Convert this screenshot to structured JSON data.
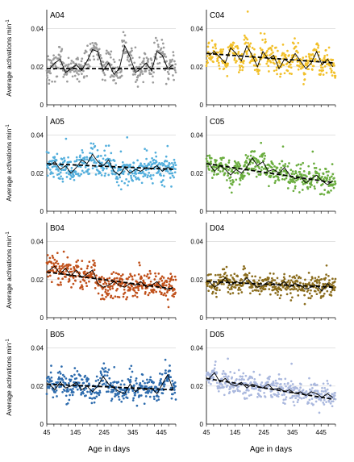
{
  "figure": {
    "ylabel": "Average activations min",
    "ylabel_sup": "-1",
    "xlabel": "Age in days"
  },
  "chart_data": [
    {
      "type": "scatter",
      "panel": "A04",
      "color": "#9b9b9b",
      "x_ticks": [
        45,
        145,
        245,
        345,
        445
      ],
      "y_ticks": [
        0,
        0.02,
        0.04
      ],
      "xlim": [
        45,
        495
      ],
      "ylim": [
        0,
        0.05
      ],
      "trend": [
        0.019,
        0.019
      ],
      "mean_level": 0.02,
      "spread": 0.006,
      "series": [
        {
          "values": [
            0.019,
            0.022,
            0.024,
            0.017,
            0.019,
            0.021,
            0.018,
            0.023,
            0.029,
            0.028,
            0.018,
            0.022,
            0.016,
            0.019,
            0.031,
            0.025,
            0.017,
            0.019,
            0.022,
            0.018,
            0.028,
            0.026,
            0.019,
            0.021
          ]
        }
      ]
    },
    {
      "type": "scatter",
      "panel": "C04",
      "color": "#f2c02a",
      "x_ticks": [
        45,
        145,
        245,
        345,
        445
      ],
      "y_ticks": [
        0,
        0.02,
        0.04
      ],
      "xlim": [
        45,
        495
      ],
      "ylim": [
        0,
        0.05
      ],
      "trend": [
        0.027,
        0.022
      ],
      "mean_level": 0.024,
      "spread": 0.006,
      "series": [
        {
          "values": [
            0.026,
            0.028,
            0.025,
            0.022,
            0.03,
            0.027,
            0.023,
            0.031,
            0.026,
            0.02,
            0.028,
            0.024,
            0.026,
            0.019,
            0.024,
            0.022,
            0.027,
            0.023,
            0.019,
            0.022,
            0.028,
            0.021,
            0.024,
            0.02
          ]
        }
      ]
    },
    {
      "type": "scatter",
      "panel": "A05",
      "color": "#52aedc",
      "x_ticks": [
        45,
        145,
        245,
        345,
        445
      ],
      "y_ticks": [
        0,
        0.02,
        0.04
      ],
      "xlim": [
        45,
        495
      ],
      "ylim": [
        0,
        0.05
      ],
      "trend": [
        0.025,
        0.022
      ],
      "mean_level": 0.024,
      "spread": 0.006,
      "series": [
        {
          "values": [
            0.024,
            0.026,
            0.022,
            0.024,
            0.02,
            0.023,
            0.027,
            0.025,
            0.03,
            0.026,
            0.024,
            0.027,
            0.021,
            0.019,
            0.023,
            0.02,
            0.022,
            0.021,
            0.023,
            0.022,
            0.024,
            0.021,
            0.023,
            0.022
          ]
        }
      ]
    },
    {
      "type": "scatter",
      "panel": "C05",
      "color": "#6aad3e",
      "x_ticks": [
        45,
        145,
        245,
        345,
        445
      ],
      "y_ticks": [
        0,
        0.02,
        0.04
      ],
      "xlim": [
        45,
        495
      ],
      "ylim": [
        0,
        0.05
      ],
      "trend": [
        0.025,
        0.015
      ],
      "mean_level": 0.02,
      "spread": 0.006,
      "series": [
        {
          "values": [
            0.025,
            0.021,
            0.024,
            0.022,
            0.019,
            0.022,
            0.02,
            0.023,
            0.028,
            0.024,
            0.026,
            0.021,
            0.022,
            0.02,
            0.023,
            0.019,
            0.017,
            0.018,
            0.015,
            0.017,
            0.019,
            0.016,
            0.014,
            0.016
          ]
        }
      ]
    },
    {
      "type": "scatter",
      "panel": "B04",
      "color": "#c0501a",
      "x_ticks": [
        45,
        145,
        245,
        345,
        445
      ],
      "y_ticks": [
        0,
        0.02,
        0.04
      ],
      "xlim": [
        45,
        495
      ],
      "ylim": [
        0,
        0.05
      ],
      "trend": [
        0.024,
        0.015
      ],
      "mean_level": 0.02,
      "spread": 0.006,
      "series": [
        {
          "values": [
            0.025,
            0.027,
            0.023,
            0.026,
            0.022,
            0.025,
            0.021,
            0.023,
            0.025,
            0.018,
            0.016,
            0.017,
            0.019,
            0.017,
            0.016,
            0.018,
            0.017,
            0.019,
            0.016,
            0.017,
            0.019,
            0.016,
            0.015,
            0.016
          ]
        }
      ]
    },
    {
      "type": "scatter",
      "panel": "D04",
      "color": "#8b6d1e",
      "x_ticks": [
        45,
        145,
        245,
        345,
        445
      ],
      "y_ticks": [
        0,
        0.02,
        0.04
      ],
      "xlim": [
        45,
        495
      ],
      "ylim": [
        0,
        0.05
      ],
      "trend": [
        0.019,
        0.016
      ],
      "mean_level": 0.018,
      "spread": 0.005,
      "series": [
        {
          "values": [
            0.019,
            0.016,
            0.018,
            0.021,
            0.017,
            0.019,
            0.018,
            0.021,
            0.018,
            0.016,
            0.017,
            0.019,
            0.018,
            0.017,
            0.019,
            0.016,
            0.018,
            0.017,
            0.015,
            0.016,
            0.017,
            0.014,
            0.018,
            0.015
          ]
        }
      ]
    },
    {
      "type": "scatter",
      "panel": "B05",
      "color": "#2e6cae",
      "x_ticks": [
        45,
        145,
        245,
        345,
        445
      ],
      "y_ticks": [
        0,
        0.02,
        0.04
      ],
      "xlim": [
        45,
        495
      ],
      "ylim": [
        0,
        0.05
      ],
      "trend": [
        0.021,
        0.018
      ],
      "mean_level": 0.019,
      "spread": 0.006,
      "series": [
        {
          "values": [
            0.021,
            0.018,
            0.022,
            0.019,
            0.02,
            0.022,
            0.018,
            0.02,
            0.017,
            0.02,
            0.025,
            0.021,
            0.019,
            0.017,
            0.016,
            0.021,
            0.017,
            0.019,
            0.018,
            0.019,
            0.016,
            0.021,
            0.026,
            0.018
          ]
        }
      ]
    },
    {
      "type": "scatter",
      "panel": "D05",
      "color": "#aab8de",
      "x_ticks": [
        45,
        145,
        245,
        345,
        445
      ],
      "y_ticks": [
        0,
        0.02,
        0.04
      ],
      "xlim": [
        45,
        495
      ],
      "ylim": [
        0,
        0.05
      ],
      "trend": [
        0.024,
        0.013
      ],
      "mean_level": 0.019,
      "spread": 0.005,
      "series": [
        {
          "values": [
            0.024,
            0.027,
            0.022,
            0.024,
            0.021,
            0.02,
            0.022,
            0.019,
            0.021,
            0.02,
            0.019,
            0.021,
            0.018,
            0.019,
            0.017,
            0.018,
            0.016,
            0.017,
            0.015,
            0.017,
            0.016,
            0.014,
            0.016,
            0.014
          ]
        }
      ]
    }
  ]
}
